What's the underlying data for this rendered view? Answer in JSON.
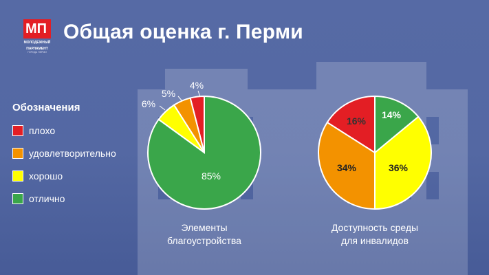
{
  "title": "Общая оценка г. Перми",
  "logo": {
    "mark": "МП",
    "line1": "МОЛОДЕЖНЫЙ",
    "line2": "ПАРЛАМЕНТ",
    "line3": "ГОРОДА ПЕРМИ"
  },
  "legend": {
    "title": "Обозначения",
    "items": [
      {
        "label": "плохо",
        "color": "#e31e24"
      },
      {
        "label": "удовлетворительно",
        "color": "#f39200"
      },
      {
        "label": "хорошо",
        "color": "#ffff00"
      },
      {
        "label": "отлично",
        "color": "#3aa64a"
      }
    ]
  },
  "chart_data": [
    {
      "type": "pie",
      "title": "Элементы благоустройства",
      "slices": [
        {
          "label": "плохо",
          "value": 4,
          "text": "4%",
          "color": "#e31e24"
        },
        {
          "label": "удовлетворительно",
          "value": 5,
          "text": "5%",
          "color": "#f39200"
        },
        {
          "label": "хорошо",
          "value": 6,
          "text": "6%",
          "color": "#ffff00"
        },
        {
          "label": "отлично",
          "value": 85,
          "text": "85%",
          "color": "#3aa64a"
        }
      ]
    },
    {
      "type": "pie",
      "title": "Доступность среды для инвалидов",
      "slices": [
        {
          "label": "плохо",
          "value": 16,
          "text": "16%",
          "color": "#e31e24"
        },
        {
          "label": "удовлетворительно",
          "value": 34,
          "text": "34%",
          "color": "#f39200"
        },
        {
          "label": "хорошо",
          "value": 36,
          "text": "36%",
          "color": "#ffff00"
        },
        {
          "label": "отлично",
          "value": 14,
          "text": "14%",
          "color": "#3aa64a"
        }
      ]
    }
  ],
  "captions": {
    "chart1_line1": "Элементы",
    "chart1_line2": "благоустройства",
    "chart2_line1": "Доступность среды",
    "chart2_line2": "для инвалидов"
  }
}
